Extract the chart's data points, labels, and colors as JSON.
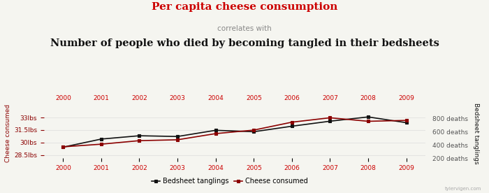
{
  "years": [
    2000,
    2001,
    2002,
    2003,
    2004,
    2005,
    2006,
    2007,
    2008,
    2009
  ],
  "cheese_lbs": [
    29.8,
    30.1,
    30.5,
    30.6,
    31.3,
    31.7,
    32.6,
    33.1,
    32.7,
    32.8
  ],
  "bedsheet_deaths": [
    327,
    456,
    509,
    497,
    596,
    573,
    661,
    741,
    809,
    717
  ],
  "cheese_color": "#8B0000",
  "bedsheet_color": "#111111",
  "title_line1": "Per capita cheese consumption",
  "title_line2": "correlates with",
  "title_line3": "Number of people who died by becoming tangled in their bedsheets",
  "title_line1_color": "#cc0000",
  "title_line2_color": "#888888",
  "title_line3_color": "#111111",
  "ylabel_left": "Cheese consumed",
  "ylabel_right": "Bedsheet tanglings",
  "ylim_cheese": [
    28.5,
    34.2
  ],
  "ylim_deaths": [
    150,
    950
  ],
  "yticks_cheese": [
    28.5,
    30.0,
    31.5,
    33.0
  ],
  "ytick_cheese_labels": [
    "28.5lbs",
    "30lbs",
    "31.5lbs",
    "33lbs"
  ],
  "yticks_deaths": [
    200,
    400,
    600,
    800
  ],
  "ytick_death_labels": [
    "200 deaths",
    "400 deaths",
    "600 deaths",
    "800 deaths"
  ],
  "background_color": "#f5f5f0",
  "grid_color": "#dddddd",
  "legend_labels": [
    "Bedsheet tanglings",
    "Cheese consumed"
  ],
  "watermark": "tylervigen.com"
}
